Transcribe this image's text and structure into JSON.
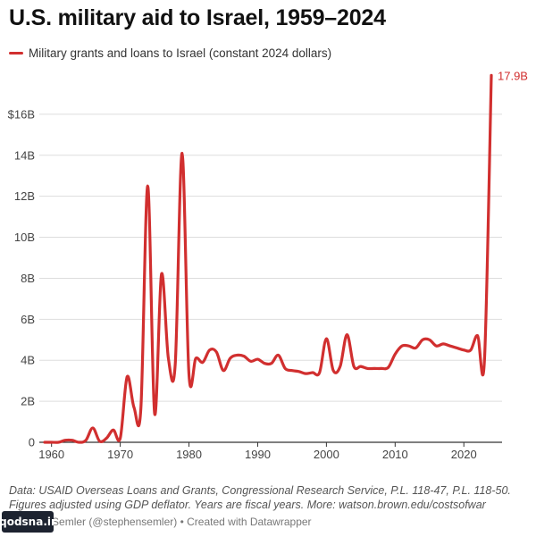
{
  "title": "U.S. military aid to Israel, 1959–2024",
  "legend_label": "Military grants and loans to Israel (constant 2024 dollars)",
  "notes_line1": "Data: USAID Overseas Loans and Grants, Congressional Research Service, P.L. 118-47, P.L. 118-50.",
  "notes_line2": "Figures adjusted using GDP deflator. Years are fiscal years. More: watson.brown.edu/costsofwar",
  "credit": "Stephen Semler (@stephensemler) • Created with Datawrapper",
  "watermark": "qodsna.ir",
  "colors": {
    "series": "#d12f2f",
    "grid": "#dddddd",
    "axis": "#333333"
  },
  "chart_data": {
    "type": "line",
    "title": "U.S. military aid to Israel, 1959–2024",
    "xlabel": "",
    "ylabel": "",
    "xlim": [
      1959,
      2024
    ],
    "ylim": [
      0,
      18
    ],
    "x_ticks": [
      1960,
      1970,
      1980,
      1990,
      2000,
      2010,
      2020
    ],
    "y_ticks": [
      0,
      2,
      4,
      6,
      8,
      10,
      12,
      14,
      16
    ],
    "y_tick_labels": [
      "0",
      "2B",
      "4B",
      "6B",
      "8B",
      "10B",
      "12B",
      "14B",
      "$16B"
    ],
    "end_label": "17.9B",
    "grid": true,
    "legend": "top-left",
    "series": [
      {
        "name": "Military grants and loans to Israel (constant 2024 dollars)",
        "x": [
          1959,
          1960,
          1961,
          1962,
          1963,
          1964,
          1965,
          1966,
          1967,
          1968,
          1969,
          1970,
          1971,
          1972,
          1973,
          1974,
          1975,
          1976,
          1977,
          1978,
          1979,
          1980,
          1981,
          1982,
          1983,
          1984,
          1985,
          1986,
          1987,
          1988,
          1989,
          1990,
          1991,
          1992,
          1993,
          1994,
          1995,
          1996,
          1997,
          1998,
          1999,
          2000,
          2001,
          2002,
          2003,
          2004,
          2005,
          2006,
          2007,
          2008,
          2009,
          2010,
          2011,
          2012,
          2013,
          2014,
          2015,
          2016,
          2017,
          2018,
          2019,
          2020,
          2021,
          2022,
          2023,
          2024
        ],
        "values": [
          0,
          0,
          0,
          0.1,
          0.1,
          0,
          0.1,
          0.7,
          0.05,
          0.2,
          0.6,
          0.2,
          3.2,
          1.7,
          1.65,
          12.5,
          1.4,
          8.2,
          4.1,
          3.8,
          14.1,
          3.3,
          4.1,
          3.9,
          4.5,
          4.4,
          3.5,
          4.1,
          4.25,
          4.2,
          3.95,
          4.05,
          3.85,
          3.85,
          4.25,
          3.6,
          3.5,
          3.45,
          3.35,
          3.4,
          3.4,
          5.05,
          3.5,
          3.7,
          5.25,
          3.7,
          3.7,
          3.6,
          3.6,
          3.6,
          3.65,
          4.3,
          4.7,
          4.7,
          4.6,
          5.0,
          5.0,
          4.7,
          4.8,
          4.7,
          4.6,
          4.5,
          4.5,
          5.2,
          4.0,
          17.9
        ]
      }
    ]
  }
}
